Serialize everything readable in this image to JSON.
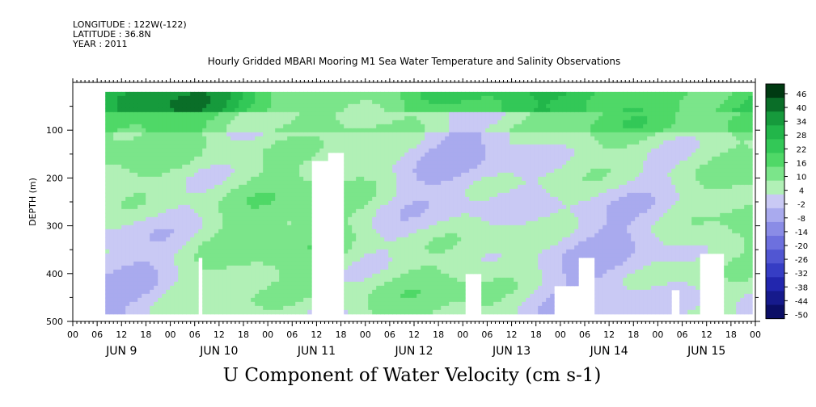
{
  "header": {
    "longitude": "LONGITUDE : 122W(-122)",
    "latitude": "LATITUDE : 36.8N",
    "year": "YEAR : 2011"
  },
  "chart_data": {
    "type": "heatmap",
    "title": "Hourly Gridded MBARI Mooring M1 Sea Water Temperature and Salinity Observations",
    "xlabel": "U Component of Water Velocity (cm s-1)",
    "ylabel": "DEPTH (m)",
    "ylim": [
      500,
      0
    ],
    "yticks": [
      100,
      200,
      300,
      400,
      500
    ],
    "ytick_labels": [
      "100",
      "200",
      "300",
      "400",
      "500"
    ],
    "x_hour_labels": [
      "00",
      "06",
      "12",
      "18",
      "00",
      "06",
      "12",
      "18",
      "00",
      "06",
      "12",
      "18",
      "00",
      "06",
      "12",
      "18",
      "00",
      "06",
      "12",
      "18",
      "00",
      "06",
      "12",
      "18",
      "00",
      "06",
      "12",
      "18",
      "00"
    ],
    "x_day_labels": [
      "JUN  9",
      "JUN 10",
      "JUN 11",
      "JUN 12",
      "JUN 13",
      "JUN 14",
      "JUN 15"
    ],
    "colorbar": {
      "labels": [
        "46",
        "40",
        "34",
        "28",
        "22",
        "16",
        "10",
        "4",
        "-2",
        "-8",
        "-14",
        "-20",
        "-26",
        "-32",
        "-38",
        "-44",
        "-50"
      ],
      "colors": [
        "#003a12",
        "#0a6e28",
        "#169a3c",
        "#22b64a",
        "#33c857",
        "#4fd867",
        "#7be58a",
        "#b1f0b6",
        "#c9c9f4",
        "#a9aaee",
        "#8a8ce6",
        "#6d70de",
        "#5156d2",
        "#363dc4",
        "#2226ae",
        "#161a8c",
        "#0b0e66"
      ]
    },
    "time_range": [
      "JUN 9 00",
      "JUN 16 00"
    ],
    "data_time_start": "JUN 9 08",
    "data_depth_range": [
      20,
      480
    ],
    "grid": false,
    "legend": "right"
  }
}
